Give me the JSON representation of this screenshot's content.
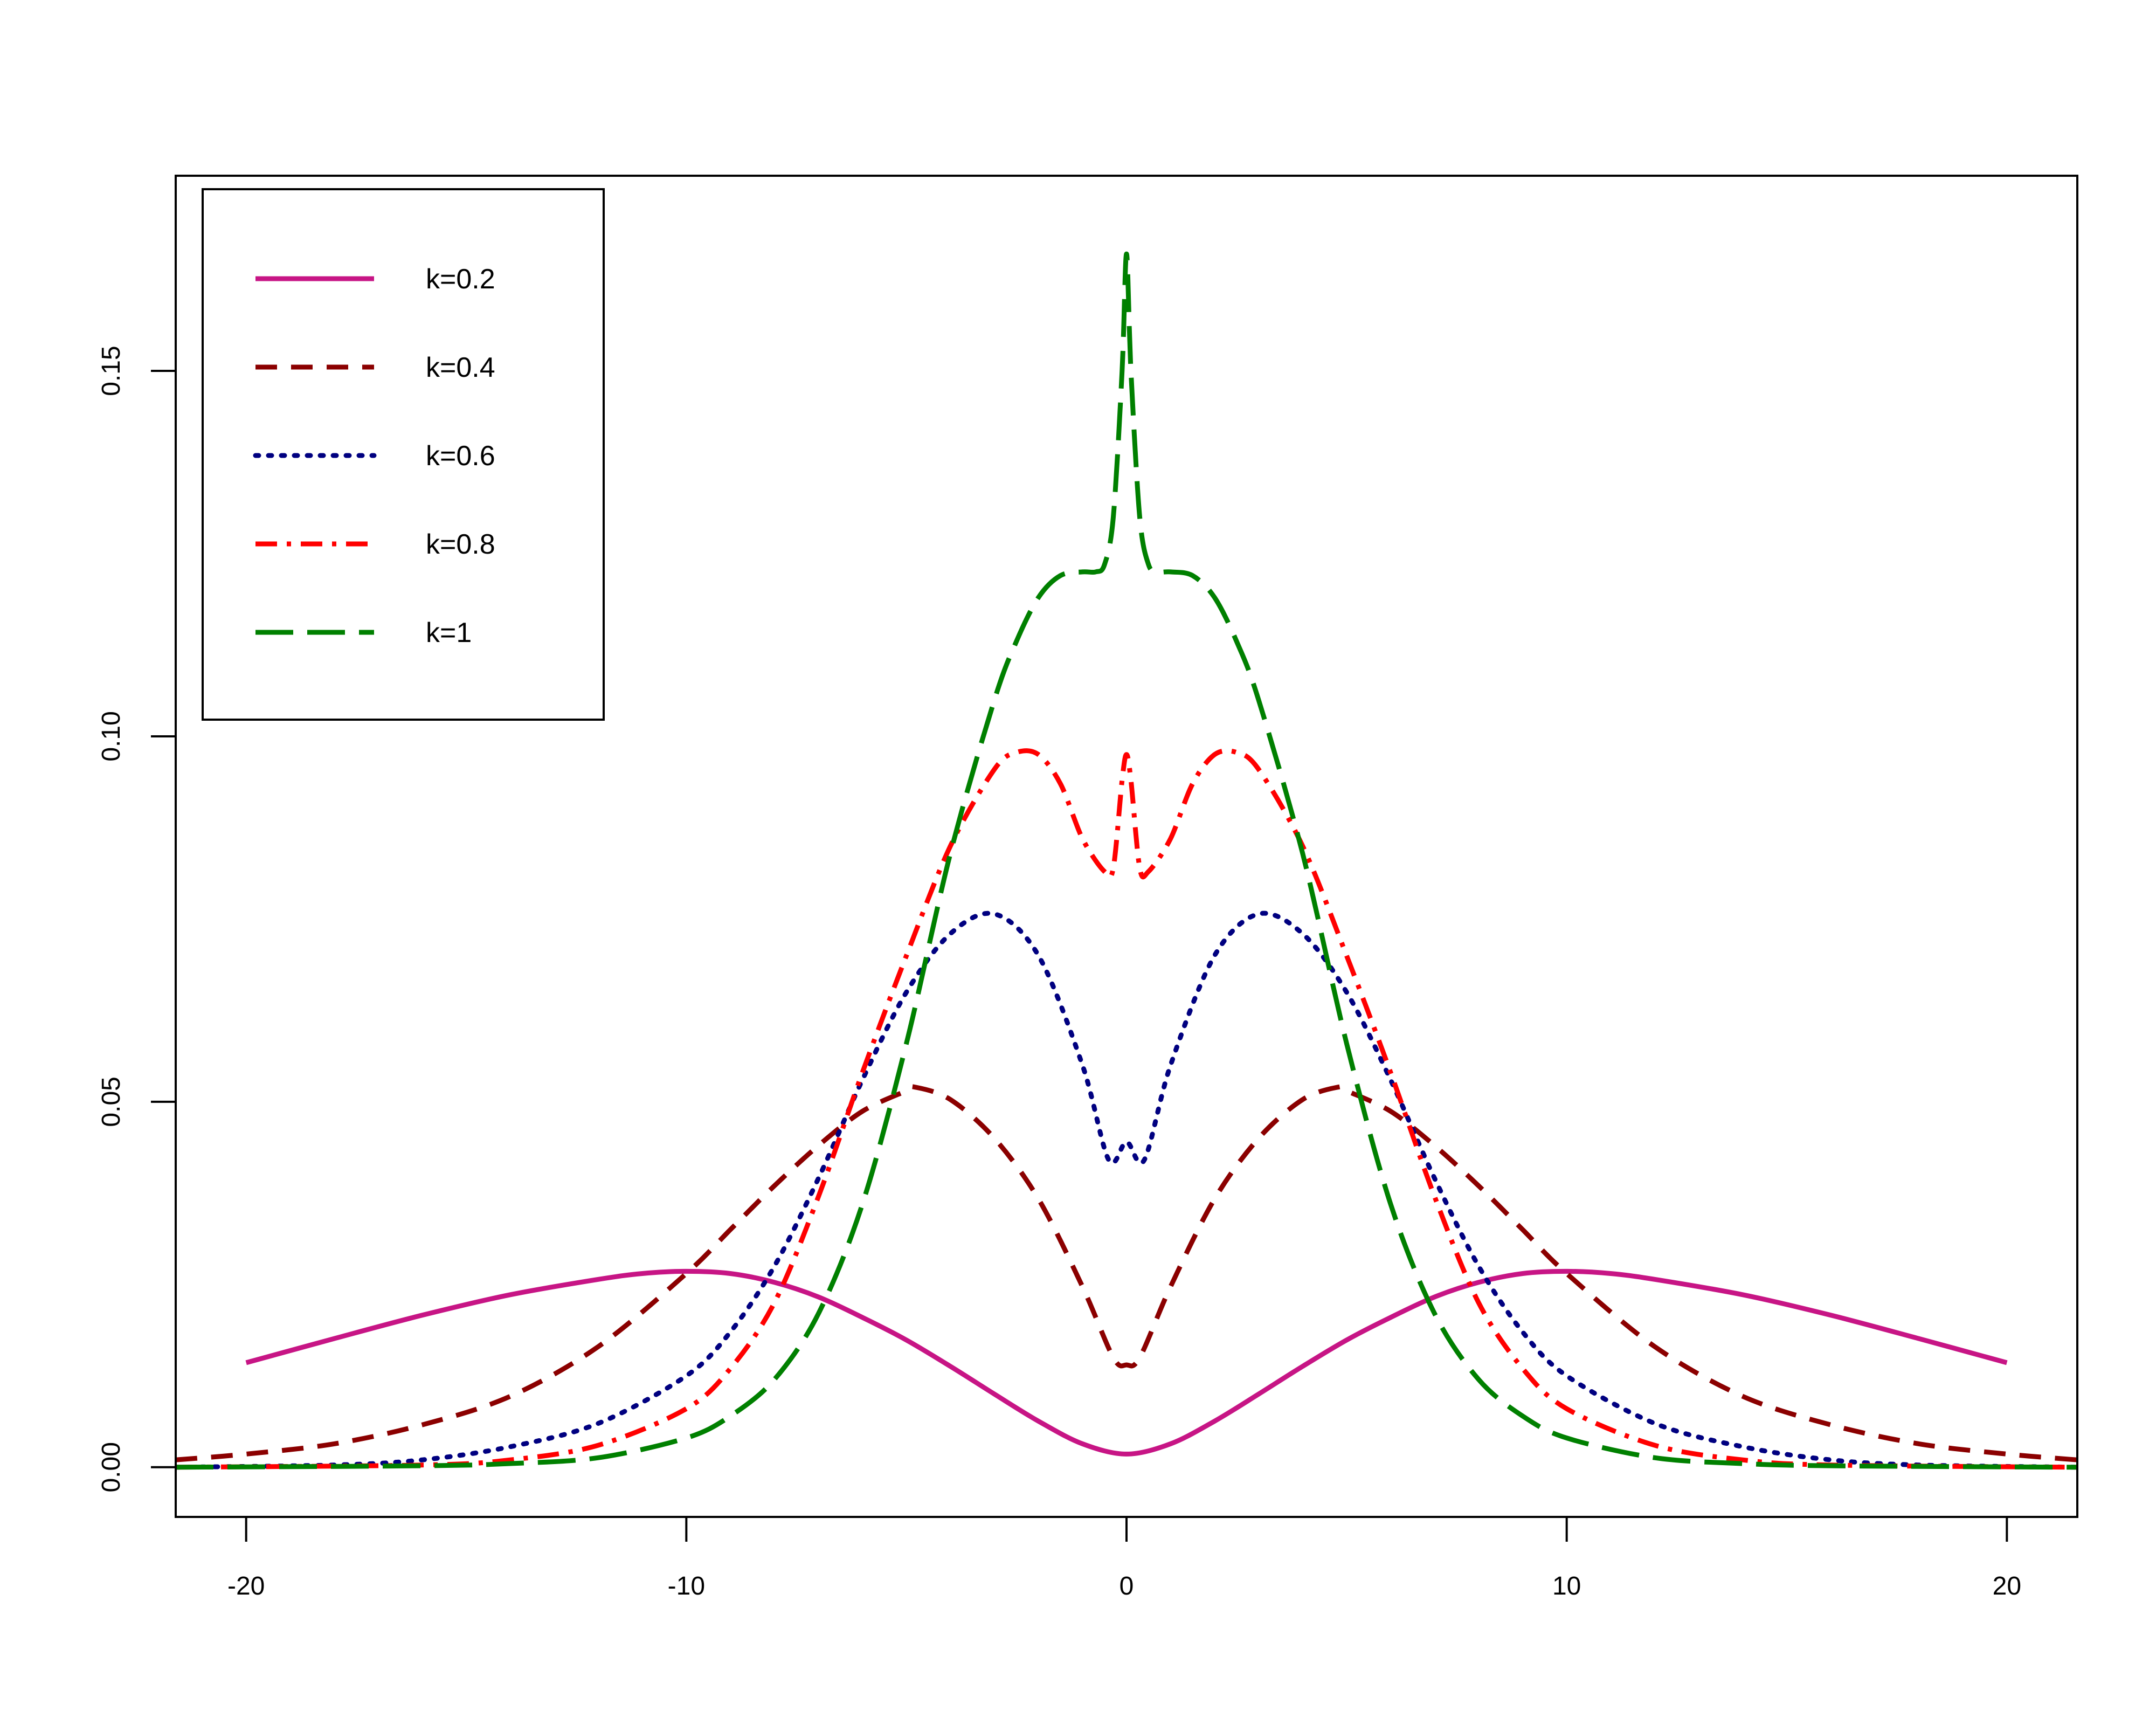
{
  "chart_data": {
    "type": "line",
    "title": "",
    "xlabel": "",
    "ylabel": "",
    "xlim": [
      -21.6,
      21.6
    ],
    "ylim": [
      -0.0068,
      0.1767
    ],
    "xticks": [
      -20,
      -10,
      0,
      10,
      20
    ],
    "xtick_labels": [
      "-20",
      "-10",
      "0",
      "10",
      "20"
    ],
    "yticks": [
      0.0,
      0.05,
      0.1,
      0.15
    ],
    "ytick_labels": [
      "0.00",
      "0.05",
      "0.10",
      "0.15"
    ],
    "grid": false,
    "legend_position": "top-left",
    "series": [
      {
        "name": "k=0.2",
        "color": "#c71585",
        "dash": "solid",
        "x": [
          -20,
          -18,
          -16,
          -14,
          -12,
          -11,
          -10,
          -9,
          -8,
          -7,
          -6,
          -5,
          -4,
          -3,
          -2,
          -1,
          0,
          1,
          2,
          3,
          4,
          5,
          6,
          7,
          8,
          9,
          10,
          11,
          12,
          14,
          16,
          18,
          20
        ],
        "y": [
          0.0143,
          0.0176,
          0.0208,
          0.0236,
          0.0257,
          0.0265,
          0.0268,
          0.0265,
          0.0253,
          0.0233,
          0.0205,
          0.0174,
          0.0138,
          0.01,
          0.0063,
          0.0032,
          0.0018,
          0.0032,
          0.0063,
          0.01,
          0.0138,
          0.0174,
          0.0205,
          0.0233,
          0.0253,
          0.0265,
          0.0268,
          0.0265,
          0.0257,
          0.0236,
          0.0208,
          0.0176,
          0.0143
        ]
      },
      {
        "name": "k=0.4",
        "color": "#8b0000",
        "dash": "dashed",
        "x": [
          -21.6,
          -20,
          -18,
          -16,
          -14,
          -12,
          -10,
          -9,
          -8,
          -7,
          -6,
          -5,
          -4.8,
          -4,
          -3,
          -2,
          -1,
          -0.3,
          0,
          0.3,
          1,
          2,
          3,
          4,
          4.8,
          5,
          6,
          7,
          8,
          9,
          10,
          12,
          14,
          16,
          18,
          20,
          21.6
        ],
        "y": [
          0.001,
          0.0018,
          0.0032,
          0.0058,
          0.0097,
          0.0165,
          0.0265,
          0.0325,
          0.0385,
          0.044,
          0.0487,
          0.0515,
          0.052,
          0.0503,
          0.045,
          0.0367,
          0.0247,
          0.015,
          0.014,
          0.015,
          0.0247,
          0.0367,
          0.045,
          0.0503,
          0.052,
          0.0515,
          0.0487,
          0.044,
          0.0385,
          0.0325,
          0.0265,
          0.0165,
          0.0097,
          0.0058,
          0.0032,
          0.0018,
          0.001
        ]
      },
      {
        "name": "k=0.6",
        "color": "#000080",
        "dash": "dotted",
        "x": [
          -21.6,
          -18,
          -16,
          -14,
          -12,
          -10,
          -9,
          -8,
          -7,
          -6,
          -5,
          -4,
          -3,
          -2,
          -1,
          -0.4,
          0,
          0.4,
          1,
          2,
          3,
          4,
          5,
          6,
          7,
          8,
          9,
          10,
          12,
          14,
          16,
          18,
          21.6
        ],
        "y": [
          0.0,
          0.0003,
          0.001,
          0.0028,
          0.006,
          0.0125,
          0.0185,
          0.0275,
          0.0395,
          0.053,
          0.065,
          0.073,
          0.0757,
          0.07,
          0.055,
          0.042,
          0.0445,
          0.042,
          0.055,
          0.07,
          0.0757,
          0.073,
          0.065,
          0.053,
          0.0395,
          0.0275,
          0.0185,
          0.0125,
          0.006,
          0.0028,
          0.001,
          0.0003,
          0.0
        ]
      },
      {
        "name": "k=0.8",
        "color": "#ff0000",
        "dash": "dash-dot",
        "x": [
          -21.6,
          -16,
          -14,
          -12,
          -10,
          -9,
          -8,
          -7,
          -6,
          -5,
          -4,
          -3,
          -2.5,
          -2,
          -1.5,
          -1,
          -0.5,
          -0.3,
          -0.1,
          0,
          0.1,
          0.3,
          0.5,
          1,
          1.5,
          2,
          2.5,
          3,
          4,
          5,
          6,
          7,
          8,
          9,
          10,
          12,
          14,
          16,
          21.6
        ],
        "y": [
          0.0,
          0.0003,
          0.001,
          0.003,
          0.008,
          0.0135,
          0.0225,
          0.037,
          0.054,
          0.07,
          0.085,
          0.0955,
          0.0978,
          0.0975,
          0.0935,
          0.086,
          0.0815,
          0.082,
          0.094,
          0.0975,
          0.094,
          0.082,
          0.0815,
          0.086,
          0.0935,
          0.0975,
          0.0978,
          0.0955,
          0.085,
          0.07,
          0.054,
          0.037,
          0.0225,
          0.0135,
          0.008,
          0.003,
          0.001,
          0.0003,
          0.0
        ]
      },
      {
        "name": "k=1",
        "color": "#008000",
        "dash": "long-dash",
        "x": [
          -21.6,
          -16,
          -14,
          -12,
          -10,
          -9,
          -8,
          -7,
          -6,
          -5,
          -4,
          -3,
          -2.5,
          -2,
          -1.5,
          -1,
          -0.7,
          -0.5,
          -0.3,
          -0.1,
          0,
          0.1,
          0.3,
          0.5,
          0.7,
          1,
          1.5,
          2,
          2.5,
          3,
          4,
          5,
          6,
          7,
          8,
          9,
          10,
          12,
          14,
          16,
          21.6
        ],
        "y": [
          0.0,
          0.0002,
          0.0005,
          0.0013,
          0.004,
          0.007,
          0.012,
          0.021,
          0.036,
          0.058,
          0.084,
          0.105,
          0.113,
          0.119,
          0.122,
          0.1225,
          0.1225,
          0.1235,
          0.13,
          0.15,
          0.166,
          0.15,
          0.13,
          0.1235,
          0.1225,
          0.1225,
          0.122,
          0.119,
          0.113,
          0.105,
          0.084,
          0.058,
          0.036,
          0.021,
          0.012,
          0.007,
          0.004,
          0.0013,
          0.0005,
          0.0002,
          0.0
        ]
      }
    ]
  }
}
